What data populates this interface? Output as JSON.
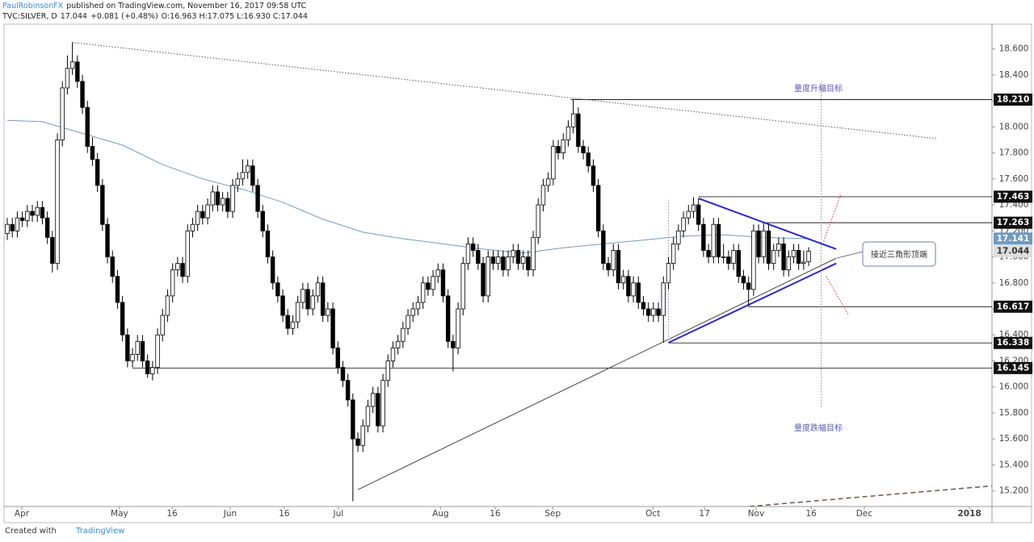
{
  "header": {
    "author": "PaulRobinsonFX",
    "published": "published on TradingView.com, November 16, 2017 09:58 UTC",
    "symbol": "TVC:SILVER, D",
    "last": "17.044",
    "change": "+0.081 (+0.48%)",
    "ohlc": "O:16.963 H:17.075 L:16.930 C:17.044"
  },
  "footer": {
    "created": "Created with",
    "brand": "TradingView"
  },
  "chart_data": {
    "type": "candlestick",
    "up_color": "#ffffff",
    "down_color": "#000000",
    "ylim": [
      15.08,
      18.79
    ],
    "xlim": [
      -0.65,
      196.6
    ],
    "yticks": [
      {
        "value": 15.2,
        "label": "15.200"
      },
      {
        "value": 15.4,
        "label": "15.400"
      },
      {
        "value": 15.6,
        "label": "15.600"
      },
      {
        "value": 15.8,
        "label": "15.800"
      },
      {
        "value": 16.0,
        "label": "16.000"
      },
      {
        "value": 16.2,
        "label": "16.200"
      },
      {
        "value": 16.4,
        "label": "16.400"
      },
      {
        "value": 16.6,
        "label": "16.600"
      },
      {
        "value": 16.8,
        "label": "16.800"
      },
      {
        "value": 17.0,
        "label": "17.000"
      },
      {
        "value": 17.2,
        "label": "17.200"
      },
      {
        "value": 17.4,
        "label": "17.400"
      },
      {
        "value": 17.6,
        "label": "17.600"
      },
      {
        "value": 17.8,
        "label": "17.800"
      },
      {
        "value": 18.0,
        "label": "18.000"
      },
      {
        "value": 18.2,
        "label": "18.200"
      },
      {
        "value": 18.4,
        "label": "18.400"
      },
      {
        "value": 18.6,
        "label": "18.600"
      }
    ],
    "xticks": [
      {
        "value": 2.9,
        "label": "Apr"
      },
      {
        "value": 22.4,
        "label": "May"
      },
      {
        "value": 32.9,
        "label": "16"
      },
      {
        "value": 44.5,
        "label": "Jun"
      },
      {
        "value": 55.3,
        "label": "16"
      },
      {
        "value": 66.1,
        "label": "Jul"
      },
      {
        "value": 86.5,
        "label": "Aug"
      },
      {
        "value": 97.4,
        "label": "16"
      },
      {
        "value": 108.9,
        "label": "Sep"
      },
      {
        "value": 128.9,
        "label": "Oct"
      },
      {
        "value": 139.2,
        "label": "17"
      },
      {
        "value": 149.5,
        "label": "Nov"
      },
      {
        "value": 160.5,
        "label": "16"
      },
      {
        "value": 171.1,
        "label": "Dec"
      },
      {
        "value": 192.1,
        "label": "2018"
      }
    ],
    "candles": [
      [
        17.18,
        17.3,
        17.13,
        17.25
      ],
      [
        17.25,
        17.3,
        17.15,
        17.2
      ],
      [
        17.2,
        17.35,
        17.15,
        17.3
      ],
      [
        17.3,
        17.35,
        17.23,
        17.28
      ],
      [
        17.28,
        17.4,
        17.23,
        17.35
      ],
      [
        17.35,
        17.4,
        17.27,
        17.32
      ],
      [
        17.32,
        17.43,
        17.27,
        17.38
      ],
      [
        17.38,
        17.43,
        17.25,
        17.3
      ],
      [
        17.3,
        17.35,
        17.1,
        17.15
      ],
      [
        17.15,
        17.2,
        16.88,
        16.95
      ],
      [
        16.95,
        17.95,
        16.9,
        17.9
      ],
      [
        17.9,
        18.35,
        17.85,
        18.3
      ],
      [
        18.3,
        18.55,
        18.25,
        18.45
      ],
      [
        18.45,
        18.65,
        18.4,
        18.5
      ],
      [
        18.5,
        18.55,
        18.3,
        18.35
      ],
      [
        18.35,
        18.4,
        18.1,
        18.15
      ],
      [
        18.15,
        18.2,
        17.8,
        17.85
      ],
      [
        17.85,
        17.92,
        17.7,
        17.75
      ],
      [
        17.75,
        17.8,
        17.5,
        17.55
      ],
      [
        17.55,
        17.6,
        17.2,
        17.25
      ],
      [
        17.25,
        17.3,
        16.95,
        17.0
      ],
      [
        17.0,
        17.05,
        16.8,
        16.85
      ],
      [
        16.85,
        16.9,
        16.6,
        16.65
      ],
      [
        16.65,
        16.7,
        16.35,
        16.4
      ],
      [
        16.4,
        16.45,
        16.15,
        16.2
      ],
      [
        16.2,
        16.3,
        16.15,
        16.25
      ],
      [
        16.25,
        16.4,
        16.2,
        16.35
      ],
      [
        16.35,
        16.4,
        16.15,
        16.2
      ],
      [
        16.2,
        16.25,
        16.07,
        16.1
      ],
      [
        16.1,
        16.2,
        16.05,
        16.15
      ],
      [
        16.15,
        16.45,
        16.1,
        16.4
      ],
      [
        16.4,
        16.6,
        16.35,
        16.55
      ],
      [
        16.55,
        16.75,
        16.5,
        16.7
      ],
      [
        16.7,
        16.95,
        16.65,
        16.9
      ],
      [
        16.9,
        17.0,
        16.85,
        16.95
      ],
      [
        16.95,
        17.0,
        16.8,
        16.85
      ],
      [
        16.85,
        17.25,
        16.8,
        17.2
      ],
      [
        17.2,
        17.3,
        17.15,
        17.25
      ],
      [
        17.25,
        17.4,
        17.2,
        17.35
      ],
      [
        17.35,
        17.4,
        17.25,
        17.3
      ],
      [
        17.3,
        17.45,
        17.25,
        17.4
      ],
      [
        17.4,
        17.55,
        17.35,
        17.5
      ],
      [
        17.5,
        17.55,
        17.35,
        17.4
      ],
      [
        17.4,
        17.5,
        17.35,
        17.45
      ],
      [
        17.45,
        17.5,
        17.3,
        17.35
      ],
      [
        17.35,
        17.6,
        17.3,
        17.55
      ],
      [
        17.55,
        17.65,
        17.5,
        17.6
      ],
      [
        17.6,
        17.75,
        17.55,
        17.65
      ],
      [
        17.65,
        17.75,
        17.6,
        17.7
      ],
      [
        17.7,
        17.75,
        17.5,
        17.55
      ],
      [
        17.55,
        17.6,
        17.3,
        17.35
      ],
      [
        17.35,
        17.4,
        17.15,
        17.2
      ],
      [
        17.2,
        17.25,
        16.95,
        17.0
      ],
      [
        17.0,
        17.05,
        16.75,
        16.8
      ],
      [
        16.8,
        16.85,
        16.65,
        16.7
      ],
      [
        16.7,
        16.75,
        16.5,
        16.55
      ],
      [
        16.55,
        16.6,
        16.4,
        16.45
      ],
      [
        16.45,
        16.55,
        16.4,
        16.5
      ],
      [
        16.5,
        16.7,
        16.45,
        16.65
      ],
      [
        16.65,
        16.8,
        16.6,
        16.75
      ],
      [
        16.75,
        16.8,
        16.55,
        16.6
      ],
      [
        16.6,
        16.75,
        16.55,
        16.7
      ],
      [
        16.7,
        16.85,
        16.65,
        16.8
      ],
      [
        16.8,
        16.85,
        16.5,
        16.55
      ],
      [
        16.55,
        16.65,
        16.5,
        16.6
      ],
      [
        16.6,
        16.65,
        16.25,
        16.3
      ],
      [
        16.3,
        16.35,
        16.1,
        16.15
      ],
      [
        16.15,
        16.2,
        16.0,
        16.05
      ],
      [
        16.05,
        16.1,
        15.85,
        15.9
      ],
      [
        15.9,
        15.95,
        15.12,
        15.6
      ],
      [
        15.6,
        15.65,
        15.5,
        15.55
      ],
      [
        15.55,
        15.75,
        15.5,
        15.7
      ],
      [
        15.7,
        15.9,
        15.65,
        15.85
      ],
      [
        15.85,
        16.0,
        15.8,
        15.95
      ],
      [
        15.95,
        16.0,
        15.65,
        15.7
      ],
      [
        15.7,
        16.1,
        15.65,
        16.05
      ],
      [
        16.05,
        16.25,
        16.0,
        16.2
      ],
      [
        16.2,
        16.35,
        16.15,
        16.3
      ],
      [
        16.3,
        16.4,
        16.25,
        16.35
      ],
      [
        16.35,
        16.5,
        16.3,
        16.45
      ],
      [
        16.45,
        16.6,
        16.4,
        16.55
      ],
      [
        16.55,
        16.65,
        16.5,
        16.6
      ],
      [
        16.6,
        16.7,
        16.55,
        16.65
      ],
      [
        16.65,
        16.85,
        16.6,
        16.8
      ],
      [
        16.8,
        16.85,
        16.7,
        16.75
      ],
      [
        16.75,
        16.9,
        16.7,
        16.85
      ],
      [
        16.85,
        16.95,
        16.8,
        16.9
      ],
      [
        16.9,
        16.95,
        16.65,
        16.7
      ],
      [
        16.7,
        16.75,
        16.3,
        16.35
      ],
      [
        16.35,
        16.4,
        16.12,
        16.3
      ],
      [
        16.3,
        16.65,
        16.25,
        16.6
      ],
      [
        16.6,
        17.0,
        16.55,
        16.95
      ],
      [
        16.95,
        17.15,
        16.9,
        17.1
      ],
      [
        17.1,
        17.15,
        17.0,
        17.05
      ],
      [
        17.05,
        17.1,
        16.9,
        16.95
      ],
      [
        16.95,
        17.0,
        16.65,
        16.7
      ],
      [
        16.7,
        17.05,
        16.65,
        17.0
      ],
      [
        17.0,
        17.05,
        16.9,
        16.95
      ],
      [
        16.95,
        17.05,
        16.9,
        17.0
      ],
      [
        17.0,
        17.05,
        16.85,
        16.9
      ],
      [
        16.9,
        17.05,
        16.85,
        17.0
      ],
      [
        17.0,
        17.1,
        16.95,
        17.05
      ],
      [
        17.05,
        17.1,
        16.9,
        16.95
      ],
      [
        16.95,
        17.05,
        16.9,
        17.0
      ],
      [
        17.0,
        17.05,
        16.85,
        16.9
      ],
      [
        16.9,
        17.2,
        16.85,
        17.15
      ],
      [
        17.15,
        17.45,
        17.1,
        17.4
      ],
      [
        17.4,
        17.6,
        17.35,
        17.55
      ],
      [
        17.55,
        17.65,
        17.5,
        17.6
      ],
      [
        17.6,
        17.9,
        17.55,
        17.85
      ],
      [
        17.85,
        17.9,
        17.75,
        17.8
      ],
      [
        17.8,
        17.95,
        17.75,
        17.9
      ],
      [
        17.9,
        18.05,
        17.85,
        18.0
      ],
      [
        18.0,
        18.21,
        17.95,
        18.1
      ],
      [
        18.1,
        18.15,
        17.8,
        17.85
      ],
      [
        17.85,
        17.9,
        17.75,
        17.8
      ],
      [
        17.8,
        17.85,
        17.65,
        17.7
      ],
      [
        17.7,
        17.75,
        17.5,
        17.55
      ],
      [
        17.55,
        17.6,
        17.15,
        17.2
      ],
      [
        17.2,
        17.25,
        16.9,
        16.95
      ],
      [
        16.95,
        17.0,
        16.85,
        16.9
      ],
      [
        16.9,
        17.1,
        16.85,
        17.05
      ],
      [
        17.05,
        17.1,
        16.75,
        16.8
      ],
      [
        16.8,
        16.9,
        16.75,
        16.85
      ],
      [
        16.85,
        16.9,
        16.65,
        16.7
      ],
      [
        16.7,
        16.85,
        16.65,
        16.8
      ],
      [
        16.8,
        16.85,
        16.6,
        16.65
      ],
      [
        16.65,
        16.7,
        16.55,
        16.6
      ],
      [
        16.6,
        16.65,
        16.5,
        16.55
      ],
      [
        16.55,
        16.65,
        16.5,
        16.6
      ],
      [
        16.6,
        16.65,
        16.5,
        16.55
      ],
      [
        16.55,
        16.85,
        16.34,
        16.8
      ],
      [
        16.8,
        17.0,
        16.75,
        16.95
      ],
      [
        16.95,
        17.15,
        16.9,
        17.1
      ],
      [
        17.1,
        17.25,
        17.05,
        17.2
      ],
      [
        17.2,
        17.35,
        17.15,
        17.3
      ],
      [
        17.3,
        17.4,
        17.25,
        17.35
      ],
      [
        17.35,
        17.46,
        17.3,
        17.4
      ],
      [
        17.4,
        17.45,
        17.2,
        17.25
      ],
      [
        17.25,
        17.3,
        17.0,
        17.05
      ],
      [
        17.05,
        17.1,
        16.95,
        17.0
      ],
      [
        17.0,
        17.3,
        16.95,
        17.25
      ],
      [
        17.25,
        17.3,
        16.95,
        17.0
      ],
      [
        17.0,
        17.1,
        16.95,
        17.0
      ],
      [
        17.0,
        17.05,
        16.9,
        16.95
      ],
      [
        16.95,
        17.1,
        16.9,
        17.05
      ],
      [
        17.05,
        17.1,
        16.8,
        16.85
      ],
      [
        16.85,
        16.9,
        16.75,
        16.8
      ],
      [
        16.8,
        16.85,
        16.62,
        16.75
      ],
      [
        16.75,
        17.25,
        16.7,
        17.2
      ],
      [
        17.2,
        17.25,
        16.95,
        17.0
      ],
      [
        17.0,
        17.26,
        16.95,
        17.2
      ],
      [
        17.2,
        17.25,
        16.9,
        16.95
      ],
      [
        16.95,
        17.1,
        16.9,
        17.05
      ],
      [
        17.05,
        17.15,
        17.0,
        17.1
      ],
      [
        17.1,
        17.15,
        16.85,
        16.9
      ],
      [
        16.9,
        17.05,
        16.85,
        17.0
      ],
      [
        17.0,
        17.1,
        16.95,
        17.05
      ],
      [
        17.05,
        17.1,
        16.9,
        16.95
      ],
      [
        16.95,
        17.05,
        16.9,
        16.96
      ],
      [
        16.963,
        17.075,
        16.93,
        17.044
      ]
    ],
    "ma": {
      "color": "#6f9bc5",
      "x": [
        0,
        7,
        15,
        23,
        31,
        39,
        47,
        55,
        63,
        71,
        79,
        87,
        95,
        103,
        111,
        119,
        127,
        135,
        143,
        151,
        160
      ],
      "values": [
        18.05,
        18.04,
        17.95,
        17.86,
        17.71,
        17.6,
        17.52,
        17.42,
        17.29,
        17.19,
        17.14,
        17.1,
        17.06,
        17.03,
        17.07,
        17.1,
        17.13,
        17.16,
        17.17,
        17.15,
        17.14
      ]
    },
    "price_labels": [
      {
        "value": 18.21,
        "label": "18.210",
        "bg": "#111111",
        "fg": "#ffffff",
        "from": 112.5
      },
      {
        "value": 17.463,
        "label": "17.463",
        "bg": "#111111",
        "fg": "#ffffff",
        "from": 138
      },
      {
        "value": 17.263,
        "label": "17.263",
        "bg": "#111111",
        "fg": "#ffffff",
        "from": 151
      },
      {
        "value": 17.141,
        "label": "17.141",
        "bg": "#6f9bc5",
        "fg": "#ffffff"
      },
      {
        "value": 17.044,
        "label": "17.044",
        "bg": "#dddddd",
        "fg": "#333333"
      },
      {
        "value": 16.617,
        "label": "16.617",
        "bg": "#111111",
        "fg": "#ffffff",
        "from": 148
      },
      {
        "value": 16.338,
        "label": "16.338",
        "bg": "#111111",
        "fg": "#ffffff",
        "from": 132
      },
      {
        "value": 16.145,
        "label": "16.145",
        "bg": "#111111",
        "fg": "#ffffff",
        "from": 25
      }
    ],
    "drawings": [
      {
        "x": [
          13,
          185.5
        ],
        "y": [
          18.65,
          17.91
        ],
        "color": "#555555",
        "style": "dotted"
      },
      {
        "x": [
          138,
          165.5
        ],
        "y": [
          17.45,
          17.06
        ],
        "color": "#2626d6",
        "style": "thick"
      },
      {
        "x": [
          132,
          165.5
        ],
        "y": [
          16.34,
          16.95
        ],
        "color": "#2626d6",
        "style": "thick"
      },
      {
        "x": [
          70,
          165.5
        ],
        "y": [
          15.21,
          16.99
        ],
        "color": "#444444",
        "style": "solid"
      },
      {
        "x": [
          132,
          132
        ],
        "y": [
          16.34,
          17.45
        ],
        "color": "#8a7fd6",
        "style": "dotted"
      },
      {
        "x": [
          162.5,
          162.5
        ],
        "y": [
          15.85,
          18.35
        ],
        "color": "#8a7fd6",
        "style": "dotted"
      },
      {
        "x": [
          163,
          166.5
        ],
        "y": [
          17.12,
          17.49
        ],
        "color": "#e03030",
        "style": "dotted"
      },
      {
        "x": [
          163.5,
          168
        ],
        "y": [
          16.85,
          16.55
        ],
        "color": "#e03030",
        "style": "dotted"
      },
      {
        "x": [
          145,
          197
        ],
        "y": [
          15.07,
          15.24
        ],
        "color": "#6b5a3a",
        "style": "dashed"
      }
    ],
    "annotations": {
      "up_target": "量度升幅目标",
      "down_target": "量度跌幅目标",
      "callout": "接近三角形顶端"
    }
  }
}
